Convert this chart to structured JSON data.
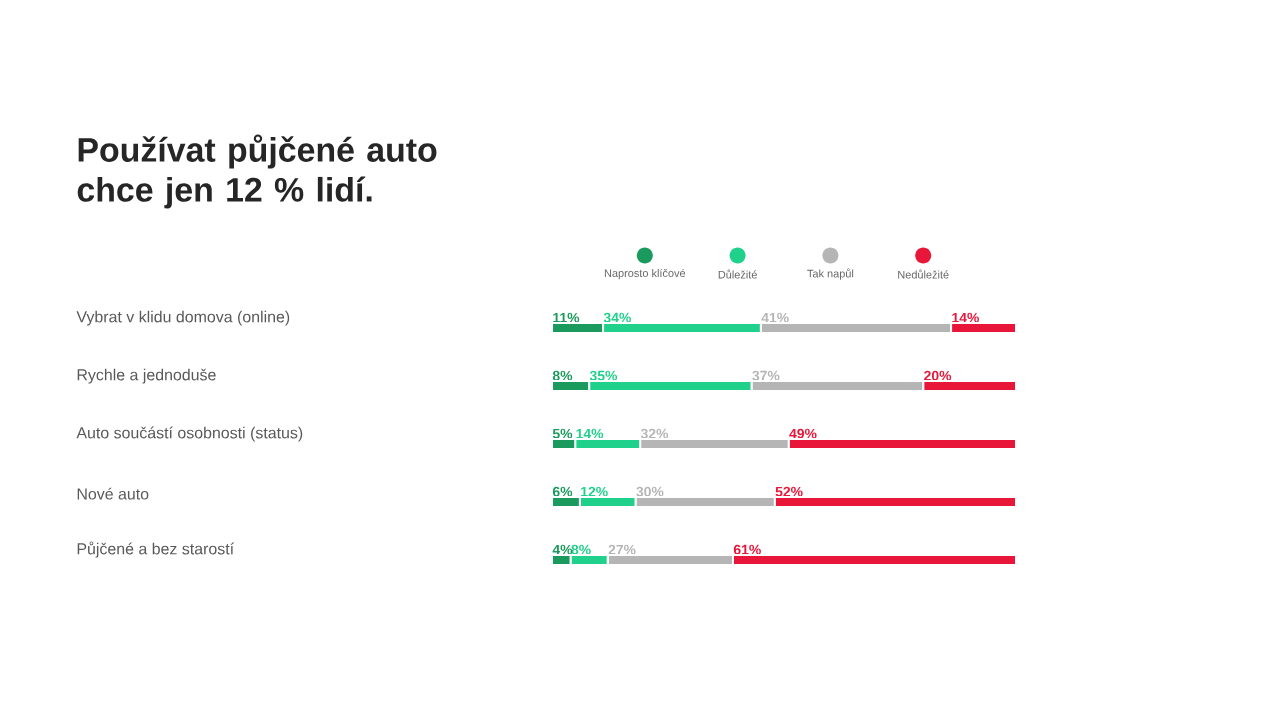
{
  "chart_data": {
    "type": "bar",
    "orientation": "horizontal",
    "stacked": true,
    "title": "Používat půjčené auto chce jen 12 % lidí.",
    "categories": [
      "Vybrat v klidu domova (online)",
      "Rychle a jednoduše",
      "Auto součástí osobnosti (status)",
      "Nové auto",
      "Půjčené a bez starostí"
    ],
    "series": [
      {
        "name": "Naprosto klíčové",
        "color": "#1a9a5c",
        "values": [
          11,
          8,
          5,
          6,
          4
        ],
        "value_labels": [
          "11%",
          "8%",
          "5%",
          "6%",
          "4%"
        ]
      },
      {
        "name": "Důležité",
        "color": "#1fd18b",
        "values": [
          34,
          35,
          14,
          12,
          8
        ],
        "value_labels": [
          "34%",
          "35%",
          "14%",
          "12%",
          "8%"
        ]
      },
      {
        "name": "Tak napůl",
        "color": "#b5b5b5",
        "values": [
          41,
          37,
          32,
          30,
          27
        ],
        "value_labels": [
          "41%",
          "37%",
          "32%",
          "30%",
          "27%"
        ]
      },
      {
        "name": "Nedůležité",
        "color": "#e8173a",
        "values": [
          14,
          20,
          49,
          52,
          61
        ],
        "value_labels": [
          "14%",
          "20%",
          "49%",
          "52%",
          "61%"
        ]
      }
    ],
    "xlim": [
      0,
      100
    ],
    "tick_labels": "y",
    "legend": "top"
  }
}
